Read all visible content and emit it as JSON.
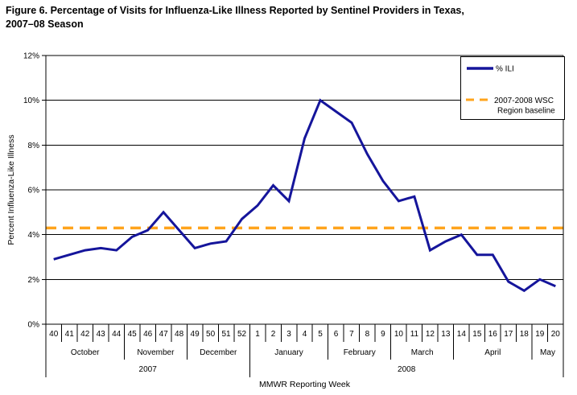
{
  "figure": {
    "title_lines": [
      "Figure 6. Percentage of Visits for Influenza-Like Illness Reported by Sentinel Providers in Texas,",
      "2007–08 Season"
    ]
  },
  "chart_data": {
    "type": "line",
    "title": "Figure 6. Percentage of Visits for Influenza-Like Illness Reported by Sentinel Providers in Texas, 2007–08 Season",
    "xlabel": "MMWR Reporting Week",
    "ylabel": "Percent Influenza-Like Illness",
    "ylim": [
      0,
      12
    ],
    "ytick_labels": [
      "0%",
      "2%",
      "4%",
      "6%",
      "8%",
      "10%",
      "12%"
    ],
    "grid": true,
    "legend_position": "top-right",
    "x_weeks": [
      40,
      41,
      42,
      43,
      44,
      45,
      46,
      47,
      48,
      49,
      50,
      51,
      52,
      1,
      2,
      3,
      4,
      5,
      6,
      7,
      8,
      9,
      10,
      11,
      12,
      13,
      14,
      15,
      16,
      17,
      18,
      19,
      20
    ],
    "series": [
      {
        "name": "% ILI",
        "type": "line",
        "color": "#15159B",
        "values": [
          2.9,
          3.1,
          3.3,
          3.4,
          3.3,
          3.9,
          4.2,
          5.0,
          4.2,
          3.4,
          3.6,
          3.7,
          4.7,
          5.3,
          6.2,
          5.5,
          8.3,
          10.0,
          9.5,
          9.0,
          7.6,
          6.4,
          5.5,
          5.7,
          3.3,
          3.7,
          4.0,
          3.1,
          3.1,
          1.9,
          1.5,
          2.0,
          1.7
        ]
      },
      {
        "name": "2007-2008 WSC Region baseline",
        "legend_lines": [
          "2007-2008 WSC",
          "Region baseline"
        ],
        "type": "horizontal-dashed",
        "color": "#FFA41C",
        "value": 4.3
      }
    ],
    "month_groups": [
      {
        "label": "October",
        "weeks": 5
      },
      {
        "label": "November",
        "weeks": 4
      },
      {
        "label": "December",
        "weeks": 4
      },
      {
        "label": "January",
        "weeks": 5
      },
      {
        "label": "February",
        "weeks": 4
      },
      {
        "label": "March",
        "weeks": 4
      },
      {
        "label": "April",
        "weeks": 5
      },
      {
        "label": "May",
        "weeks": 2
      }
    ],
    "year_groups": [
      {
        "label": "2007",
        "weeks": 13
      },
      {
        "label": "2008",
        "weeks": 20
      }
    ]
  }
}
